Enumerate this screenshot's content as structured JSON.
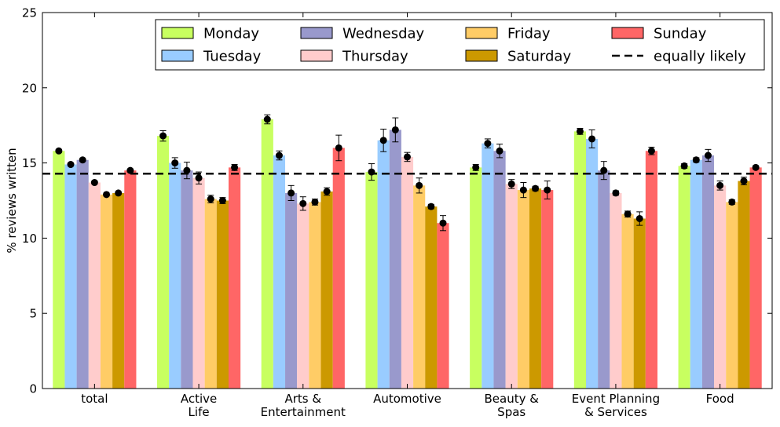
{
  "chart_data": {
    "type": "bar",
    "ylabel": "% reviews written",
    "ylim": [
      0,
      25
    ],
    "yticks": [
      0,
      5,
      10,
      15,
      20,
      25
    ],
    "grid": false,
    "legend_position": "top-right",
    "categories": [
      [
        "total"
      ],
      [
        "Active",
        "Life"
      ],
      [
        "Arts &",
        "Entertainment"
      ],
      [
        "Automotive"
      ],
      [
        "Beauty &",
        "Spas"
      ],
      [
        "Event Planning",
        "& Services"
      ],
      [
        "Food"
      ]
    ],
    "reference_line": {
      "label": "equally likely",
      "value": 14.29
    },
    "series": [
      {
        "name": "Monday",
        "color": "#c8ff60",
        "values": [
          15.8,
          16.8,
          17.9,
          14.4,
          14.7,
          17.1,
          14.8
        ],
        "errors": [
          0.1,
          0.35,
          0.3,
          0.55,
          0.2,
          0.2,
          0.15
        ]
      },
      {
        "name": "Tuesday",
        "color": "#99ccff",
        "values": [
          14.9,
          15.0,
          15.5,
          16.5,
          16.3,
          16.6,
          15.2
        ],
        "errors": [
          0.1,
          0.35,
          0.3,
          0.75,
          0.3,
          0.6,
          0.15
        ]
      },
      {
        "name": "Wednesday",
        "color": "#9999cc",
        "values": [
          15.2,
          14.5,
          13.0,
          17.2,
          15.8,
          14.5,
          15.5
        ],
        "errors": [
          0.1,
          0.55,
          0.5,
          0.8,
          0.45,
          0.6,
          0.4
        ]
      },
      {
        "name": "Thursday",
        "color": "#ffcccc",
        "values": [
          13.7,
          14.0,
          12.3,
          15.4,
          13.6,
          13.0,
          13.5
        ],
        "errors": [
          0.1,
          0.4,
          0.45,
          0.3,
          0.3,
          0.15,
          0.3
        ]
      },
      {
        "name": "Friday",
        "color": "#ffcc66",
        "values": [
          12.9,
          12.6,
          12.4,
          13.5,
          13.2,
          11.6,
          12.4
        ],
        "errors": [
          0.1,
          0.25,
          0.2,
          0.5,
          0.5,
          0.2,
          0.15
        ]
      },
      {
        "name": "Saturday",
        "color": "#cc9900",
        "values": [
          13.0,
          12.5,
          13.1,
          12.1,
          13.3,
          11.3,
          13.8
        ],
        "errors": [
          0.1,
          0.2,
          0.25,
          0.15,
          0.15,
          0.45,
          0.25
        ]
      },
      {
        "name": "Sunday",
        "color": "#ff6666",
        "values": [
          14.5,
          14.7,
          16.0,
          11.0,
          13.2,
          15.8,
          14.7
        ],
        "errors": [
          0.1,
          0.2,
          0.85,
          0.5,
          0.6,
          0.25,
          0.1
        ]
      }
    ]
  }
}
